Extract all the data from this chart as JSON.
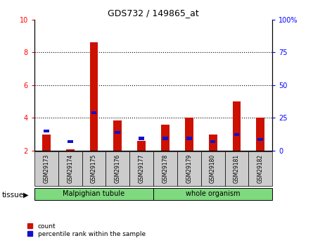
{
  "title": "GDS732 / 149865_at",
  "samples": [
    "GSM29173",
    "GSM29174",
    "GSM29175",
    "GSM29176",
    "GSM29177",
    "GSM29178",
    "GSM29179",
    "GSM29180",
    "GSM29181",
    "GSM29182"
  ],
  "red_values": [
    3.0,
    2.1,
    8.6,
    3.85,
    2.6,
    3.6,
    4.0,
    3.0,
    5.0,
    4.0
  ],
  "blue_values_left_axis": [
    3.2,
    2.55,
    4.3,
    3.1,
    2.75,
    2.75,
    2.75,
    2.55,
    3.0,
    2.7
  ],
  "ylim_left": [
    2,
    10
  ],
  "ylim_right": [
    0,
    100
  ],
  "yticks_left": [
    2,
    4,
    6,
    8,
    10
  ],
  "yticks_right": [
    0,
    25,
    50,
    75,
    100
  ],
  "ytick_labels_right": [
    "0",
    "25",
    "50",
    "75",
    "100%"
  ],
  "tissue_groups": [
    {
      "label": "Malpighian tubule",
      "indices": [
        0,
        1,
        2,
        3,
        4
      ],
      "color": "#7FD97F"
    },
    {
      "label": "whole organism",
      "indices": [
        5,
        6,
        7,
        8,
        9
      ],
      "color": "#7FD97F"
    }
  ],
  "bar_color_red": "#CC1100",
  "bar_color_blue": "#1111CC",
  "bar_width": 0.35,
  "tick_box_color": "#CCCCCC",
  "legend_count_label": "count",
  "legend_pct_label": "percentile rank within the sample",
  "tissue_label": "tissue"
}
